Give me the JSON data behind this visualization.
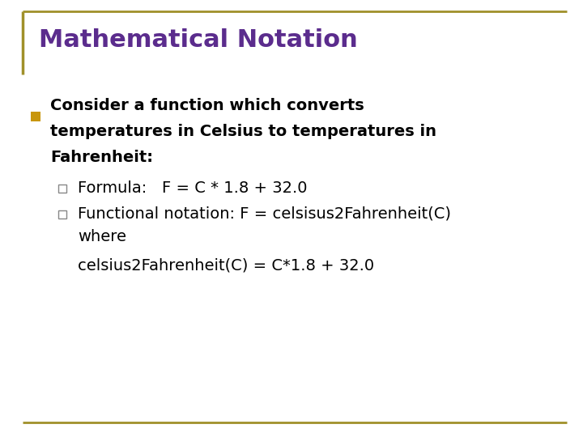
{
  "title": "Mathematical Notation",
  "title_color": "#5B2C8D",
  "title_fontsize": 22,
  "background_color": "#FFFFFF",
  "border_color": "#A0902A",
  "bullet_fill_color": "#C8960C",
  "bullet_square_color": "#888888",
  "main_bullet_text_line1": "Consider a function which converts",
  "main_bullet_text_line2": "temperatures in Celsius to temperatures in",
  "main_bullet_text_line3": "Fahrenheit:",
  "sub_bullet1": "Formula:   F = C * 1.8 + 32.0",
  "sub_bullet2_line1": "Functional notation: F = celsisus2Fahrenheit(C)",
  "sub_bullet2_line2": "where",
  "sub_bullet2_line3": "celsius2Fahrenheit(C) = C*1.8 + 32.0",
  "body_fontsize": 14,
  "body_color": "#000000"
}
